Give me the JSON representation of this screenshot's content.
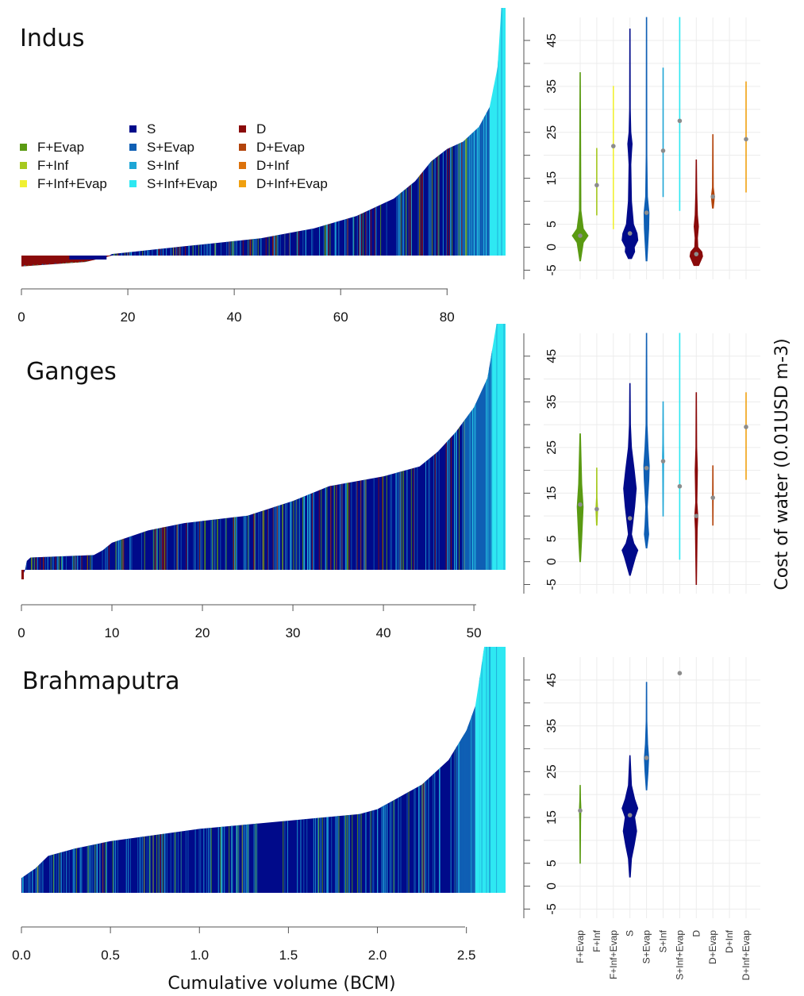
{
  "colors": {
    "F+Evap": "#5a9a12",
    "F+Inf": "#a6c91f",
    "F+Inf+Evap": "#f0f032",
    "S": "#000a8a",
    "S+Evap": "#0f5fb4",
    "S+Inf": "#1ea6d6",
    "S+Inf+Evap": "#2ee8f2",
    "D": "#8a0a0a",
    "D+Evap": "#b2440c",
    "D+Inf": "#dc720c",
    "D+Inf+Evap": "#f0a010",
    "median_dot": "#8c8c8c"
  },
  "legend": {
    "items": [
      "F+Evap",
      "F+Inf",
      "F+Inf+Evap",
      "S",
      "S+Evap",
      "S+Inf",
      "S+Inf+Evap",
      "D",
      "D+Evap",
      "D+Inf",
      "D+Inf+Evap"
    ]
  },
  "x_axis_label": "Cumulative volume (BCM)",
  "y_axis_label": "Cost of water (0.01USD m-3)",
  "chart_data": [
    {
      "type": "area",
      "basin": "Indus",
      "x_ticks": [
        "0",
        "20",
        "40",
        "60",
        "80"
      ],
      "xlim": [
        0,
        91
      ],
      "ylim": [
        -5,
        50
      ],
      "curve": [
        [
          0,
          -2.2
        ],
        [
          12,
          -1.3
        ],
        [
          16,
          -0.3
        ],
        [
          17,
          0.3
        ],
        [
          30,
          1.8
        ],
        [
          45,
          3.5
        ],
        [
          55,
          5.5
        ],
        [
          63,
          8
        ],
        [
          70,
          11.5
        ],
        [
          74,
          15
        ],
        [
          77,
          19
        ],
        [
          80,
          21.5
        ],
        [
          83,
          23
        ],
        [
          86,
          26
        ],
        [
          88,
          30
        ],
        [
          89.5,
          38
        ],
        [
          90.2,
          50
        ],
        [
          91,
          50
        ]
      ],
      "composition": [
        [
          0,
          16,
          "D"
        ],
        [
          16,
          82,
          "S"
        ],
        [
          82,
          88,
          "S+Evap"
        ],
        [
          88,
          91,
          "S+Inf+Evap"
        ]
      ]
    },
    {
      "type": "area",
      "basin": "Ganges",
      "x_ticks": [
        "0",
        "10",
        "20",
        "30",
        "40",
        "50"
      ],
      "xlim": [
        0,
        53.5
      ],
      "ylim": [
        -5,
        50
      ],
      "curve": [
        [
          0,
          -1.8
        ],
        [
          0.4,
          0
        ],
        [
          0.6,
          1.8
        ],
        [
          1,
          2.5
        ],
        [
          8,
          3
        ],
        [
          9,
          4
        ],
        [
          10,
          5.5
        ],
        [
          14,
          8
        ],
        [
          18,
          9.5
        ],
        [
          25,
          11
        ],
        [
          30,
          14
        ],
        [
          34,
          17
        ],
        [
          40,
          19
        ],
        [
          44,
          21
        ],
        [
          46,
          24
        ],
        [
          48,
          28
        ],
        [
          50,
          33
        ],
        [
          51.5,
          39
        ],
        [
          52.5,
          50
        ],
        [
          53.5,
          50
        ]
      ],
      "composition": [
        [
          0,
          49,
          "S"
        ],
        [
          49,
          52,
          "S+Evap"
        ],
        [
          52,
          53.5,
          "S+Inf+Evap"
        ]
      ]
    },
    {
      "type": "area",
      "basin": "Brahmaputra",
      "x_ticks": [
        "0.0",
        "0.5",
        "1.0",
        "1.5",
        "2.0",
        "2.5"
      ],
      "xlim": [
        0,
        2.72
      ],
      "ylim": [
        0,
        50
      ],
      "curve": [
        [
          0,
          3
        ],
        [
          0.08,
          5
        ],
        [
          0.15,
          7.5
        ],
        [
          0.3,
          9
        ],
        [
          0.5,
          10.5
        ],
        [
          0.8,
          12
        ],
        [
          1.0,
          13
        ],
        [
          1.3,
          14
        ],
        [
          1.6,
          15
        ],
        [
          1.9,
          16
        ],
        [
          2.0,
          17
        ],
        [
          2.1,
          19
        ],
        [
          2.25,
          22
        ],
        [
          2.4,
          27
        ],
        [
          2.5,
          33
        ],
        [
          2.55,
          38
        ],
        [
          2.58,
          45
        ],
        [
          2.6,
          50
        ],
        [
          2.72,
          50
        ]
      ],
      "composition": [
        [
          0,
          2.45,
          "S"
        ],
        [
          2.45,
          2.55,
          "S+Evap"
        ],
        [
          2.55,
          2.72,
          "S+Inf+Evap"
        ]
      ]
    },
    {
      "type": "violin",
      "basin": "Indus",
      "categories": [
        "F+Evap",
        "F+Inf",
        "F+Inf+Evap",
        "S",
        "S+Evap",
        "S+Inf",
        "S+Inf+Evap",
        "D",
        "D+Evap",
        "D+Inf",
        "D+Inf+Evap"
      ],
      "y_ticks": [
        "45",
        "35",
        "25",
        "15",
        "5",
        "0",
        "-5"
      ],
      "ylim": [
        -7,
        50
      ],
      "series": [
        {
          "category": "F+Evap",
          "min": -3,
          "max": 38,
          "median": 2.5,
          "profile": [
            [
              -3,
              0.05
            ],
            [
              1,
              0.4
            ],
            [
              2.5,
              1
            ],
            [
              4,
              0.4
            ],
            [
              8,
              0.1
            ],
            [
              38,
              0.03
            ]
          ]
        },
        {
          "category": "F+Inf",
          "min": 7,
          "max": 21.5,
          "median": 13.5,
          "profile": [
            [
              7,
              0.03
            ],
            [
              21.5,
              0.03
            ]
          ]
        },
        {
          "category": "F+Inf+Evap",
          "min": 4,
          "max": 35,
          "median": 22,
          "profile": [
            [
              4,
              0.03
            ],
            [
              35,
              0.03
            ]
          ]
        },
        {
          "category": "S",
          "min": -2.5,
          "max": 47.5,
          "median": 3,
          "profile": [
            [
              -2.5,
              0.2
            ],
            [
              -1,
              0.6
            ],
            [
              0,
              0.55
            ],
            [
              1.5,
              1
            ],
            [
              3,
              0.9
            ],
            [
              5,
              0.45
            ],
            [
              10,
              0.2
            ],
            [
              18,
              0.12
            ],
            [
              20.5,
              0.2
            ],
            [
              22.5,
              0.28
            ],
            [
              25,
              0.12
            ],
            [
              30,
              0.05
            ],
            [
              47.5,
              0.03
            ]
          ]
        },
        {
          "category": "S+Evap",
          "min": -3,
          "max": 50,
          "median": 7.5,
          "profile": [
            [
              -3,
              0.06
            ],
            [
              4,
              0.28
            ],
            [
              7.5,
              0.32
            ],
            [
              11,
              0.12
            ],
            [
              20,
              0.05
            ],
            [
              50,
              0.03
            ]
          ]
        },
        {
          "category": "S+Inf",
          "min": 11,
          "max": 39,
          "median": 21,
          "profile": [
            [
              11,
              0.03
            ],
            [
              39,
              0.03
            ]
          ]
        },
        {
          "category": "S+Inf+Evap",
          "min": 8,
          "max": 50,
          "median": 27.5,
          "profile": [
            [
              8,
              0.03
            ],
            [
              50,
              0.03
            ]
          ]
        },
        {
          "category": "D",
          "min": -4,
          "max": 19,
          "median": -1.5,
          "profile": [
            [
              -4,
              0.3
            ],
            [
              -2,
              0.8
            ],
            [
              -1,
              0.7
            ],
            [
              0,
              0.2
            ],
            [
              2,
              0.15
            ],
            [
              4.5,
              0.28
            ],
            [
              7,
              0.15
            ],
            [
              12,
              0.07
            ],
            [
              19,
              0.03
            ]
          ]
        },
        {
          "category": "D+Evap",
          "min": 8.5,
          "max": 24.5,
          "median": 11,
          "profile": [
            [
              8.5,
              0.06
            ],
            [
              11,
              0.2
            ],
            [
              13,
              0.06
            ],
            [
              24.5,
              0.03
            ]
          ]
        },
        {
          "category": "D+Inf+Evap",
          "min": 12,
          "max": 36,
          "median": 23.5,
          "profile": [
            [
              12,
              0.03
            ],
            [
              36,
              0.03
            ]
          ]
        }
      ]
    },
    {
      "type": "violin",
      "basin": "Ganges",
      "categories": [
        "F+Evap",
        "F+Inf",
        "F+Inf+Evap",
        "S",
        "S+Evap",
        "S+Inf",
        "S+Inf+Evap",
        "D",
        "D+Evap",
        "D+Inf",
        "D+Inf+Evap"
      ],
      "y_ticks": [
        "45",
        "35",
        "25",
        "15",
        "5",
        "0",
        "-5"
      ],
      "ylim": [
        -7,
        50
      ],
      "series": [
        {
          "category": "F+Evap",
          "min": 0,
          "max": 28,
          "median": 12.5,
          "profile": [
            [
              0,
              0.05
            ],
            [
              5,
              0.2
            ],
            [
              12,
              0.38
            ],
            [
              17,
              0.2
            ],
            [
              28,
              0.04
            ]
          ]
        },
        {
          "category": "F+Inf",
          "min": 8,
          "max": 20.5,
          "median": 11.5,
          "profile": [
            [
              8,
              0.04
            ],
            [
              11.5,
              0.12
            ],
            [
              14,
              0.04
            ],
            [
              20.5,
              0.03
            ]
          ]
        },
        {
          "category": "S",
          "min": -3,
          "max": 39,
          "median": 9.5,
          "profile": [
            [
              -3,
              0.05
            ],
            [
              1,
              0.7
            ],
            [
              2.5,
              1
            ],
            [
              4,
              0.5
            ],
            [
              6,
              0.2
            ],
            [
              9,
              0.4
            ],
            [
              12,
              0.6
            ],
            [
              16,
              0.8
            ],
            [
              20,
              0.55
            ],
            [
              25,
              0.2
            ],
            [
              30,
              0.07
            ],
            [
              39,
              0.03
            ]
          ]
        },
        {
          "category": "S+Evap",
          "min": 3,
          "max": 50,
          "median": 20.5,
          "profile": [
            [
              3,
              0.05
            ],
            [
              6,
              0.28
            ],
            [
              8,
              0.2
            ],
            [
              12,
              0.1
            ],
            [
              18,
              0.3
            ],
            [
              21,
              0.35
            ],
            [
              25,
              0.2
            ],
            [
              30,
              0.07
            ],
            [
              50,
              0.03
            ]
          ]
        },
        {
          "category": "S+Inf",
          "min": 10,
          "max": 35,
          "median": 22,
          "profile": [
            [
              10,
              0.03
            ],
            [
              20,
              0.06
            ],
            [
              23,
              0.08
            ],
            [
              26,
              0.05
            ],
            [
              35,
              0.03
            ]
          ]
        },
        {
          "category": "S+Inf+Evap",
          "min": 0.5,
          "max": 50,
          "median": 16.5,
          "profile": [
            [
              0.5,
              0.03
            ],
            [
              50,
              0.03
            ]
          ]
        },
        {
          "category": "D",
          "min": -5,
          "max": 37,
          "median": 10,
          "profile": [
            [
              -5,
              0.03
            ],
            [
              7,
              0.12
            ],
            [
              10,
              0.2
            ],
            [
              13,
              0.08
            ],
            [
              17,
              0.12
            ],
            [
              20,
              0.15
            ],
            [
              25,
              0.06
            ],
            [
              37,
              0.03
            ]
          ]
        },
        {
          "category": "D+Evap",
          "min": 8,
          "max": 21,
          "median": 14,
          "profile": [
            [
              8,
              0.03
            ],
            [
              14,
              0.05
            ],
            [
              21,
              0.03
            ]
          ]
        },
        {
          "category": "D+Inf+Evap",
          "min": 18,
          "max": 37,
          "median": 29.5,
          "profile": [
            [
              18,
              0.03
            ],
            [
              37,
              0.03
            ]
          ]
        }
      ]
    },
    {
      "type": "violin",
      "basin": "Brahmaputra",
      "categories": [
        "F+Evap",
        "F+Inf",
        "F+Inf+Evap",
        "S",
        "S+Evap",
        "S+Inf",
        "S+Inf+Evap",
        "D",
        "D+Evap",
        "D+Inf",
        "D+Inf+Evap"
      ],
      "y_ticks": [
        "45",
        "35",
        "25",
        "15",
        "5",
        "0",
        "-5"
      ],
      "ylim": [
        -7,
        50
      ],
      "series": [
        {
          "category": "F+Evap",
          "min": 5,
          "max": 22,
          "median": 16.5,
          "profile": [
            [
              5,
              0.03
            ],
            [
              14,
              0.06
            ],
            [
              17,
              0.1
            ],
            [
              19,
              0.05
            ],
            [
              22,
              0.03
            ]
          ]
        },
        {
          "category": "S",
          "min": 2,
          "max": 28.5,
          "median": 15.5,
          "profile": [
            [
              2,
              0.05
            ],
            [
              6,
              0.2
            ],
            [
              9,
              0.55
            ],
            [
              12,
              0.85
            ],
            [
              15,
              0.6
            ],
            [
              17,
              1
            ],
            [
              19,
              0.6
            ],
            [
              22,
              0.2
            ],
            [
              28.5,
              0.03
            ]
          ]
        },
        {
          "category": "S+Evap",
          "min": 21,
          "max": 44.5,
          "median": 28,
          "profile": [
            [
              21,
              0.04
            ],
            [
              25,
              0.2
            ],
            [
              28,
              0.28
            ],
            [
              31,
              0.15
            ],
            [
              36,
              0.05
            ],
            [
              44.5,
              0.03
            ]
          ]
        },
        {
          "category": "S+Inf+Evap",
          "min": 46.5,
          "max": 46.5,
          "median": 46.5,
          "profile": []
        }
      ]
    }
  ]
}
